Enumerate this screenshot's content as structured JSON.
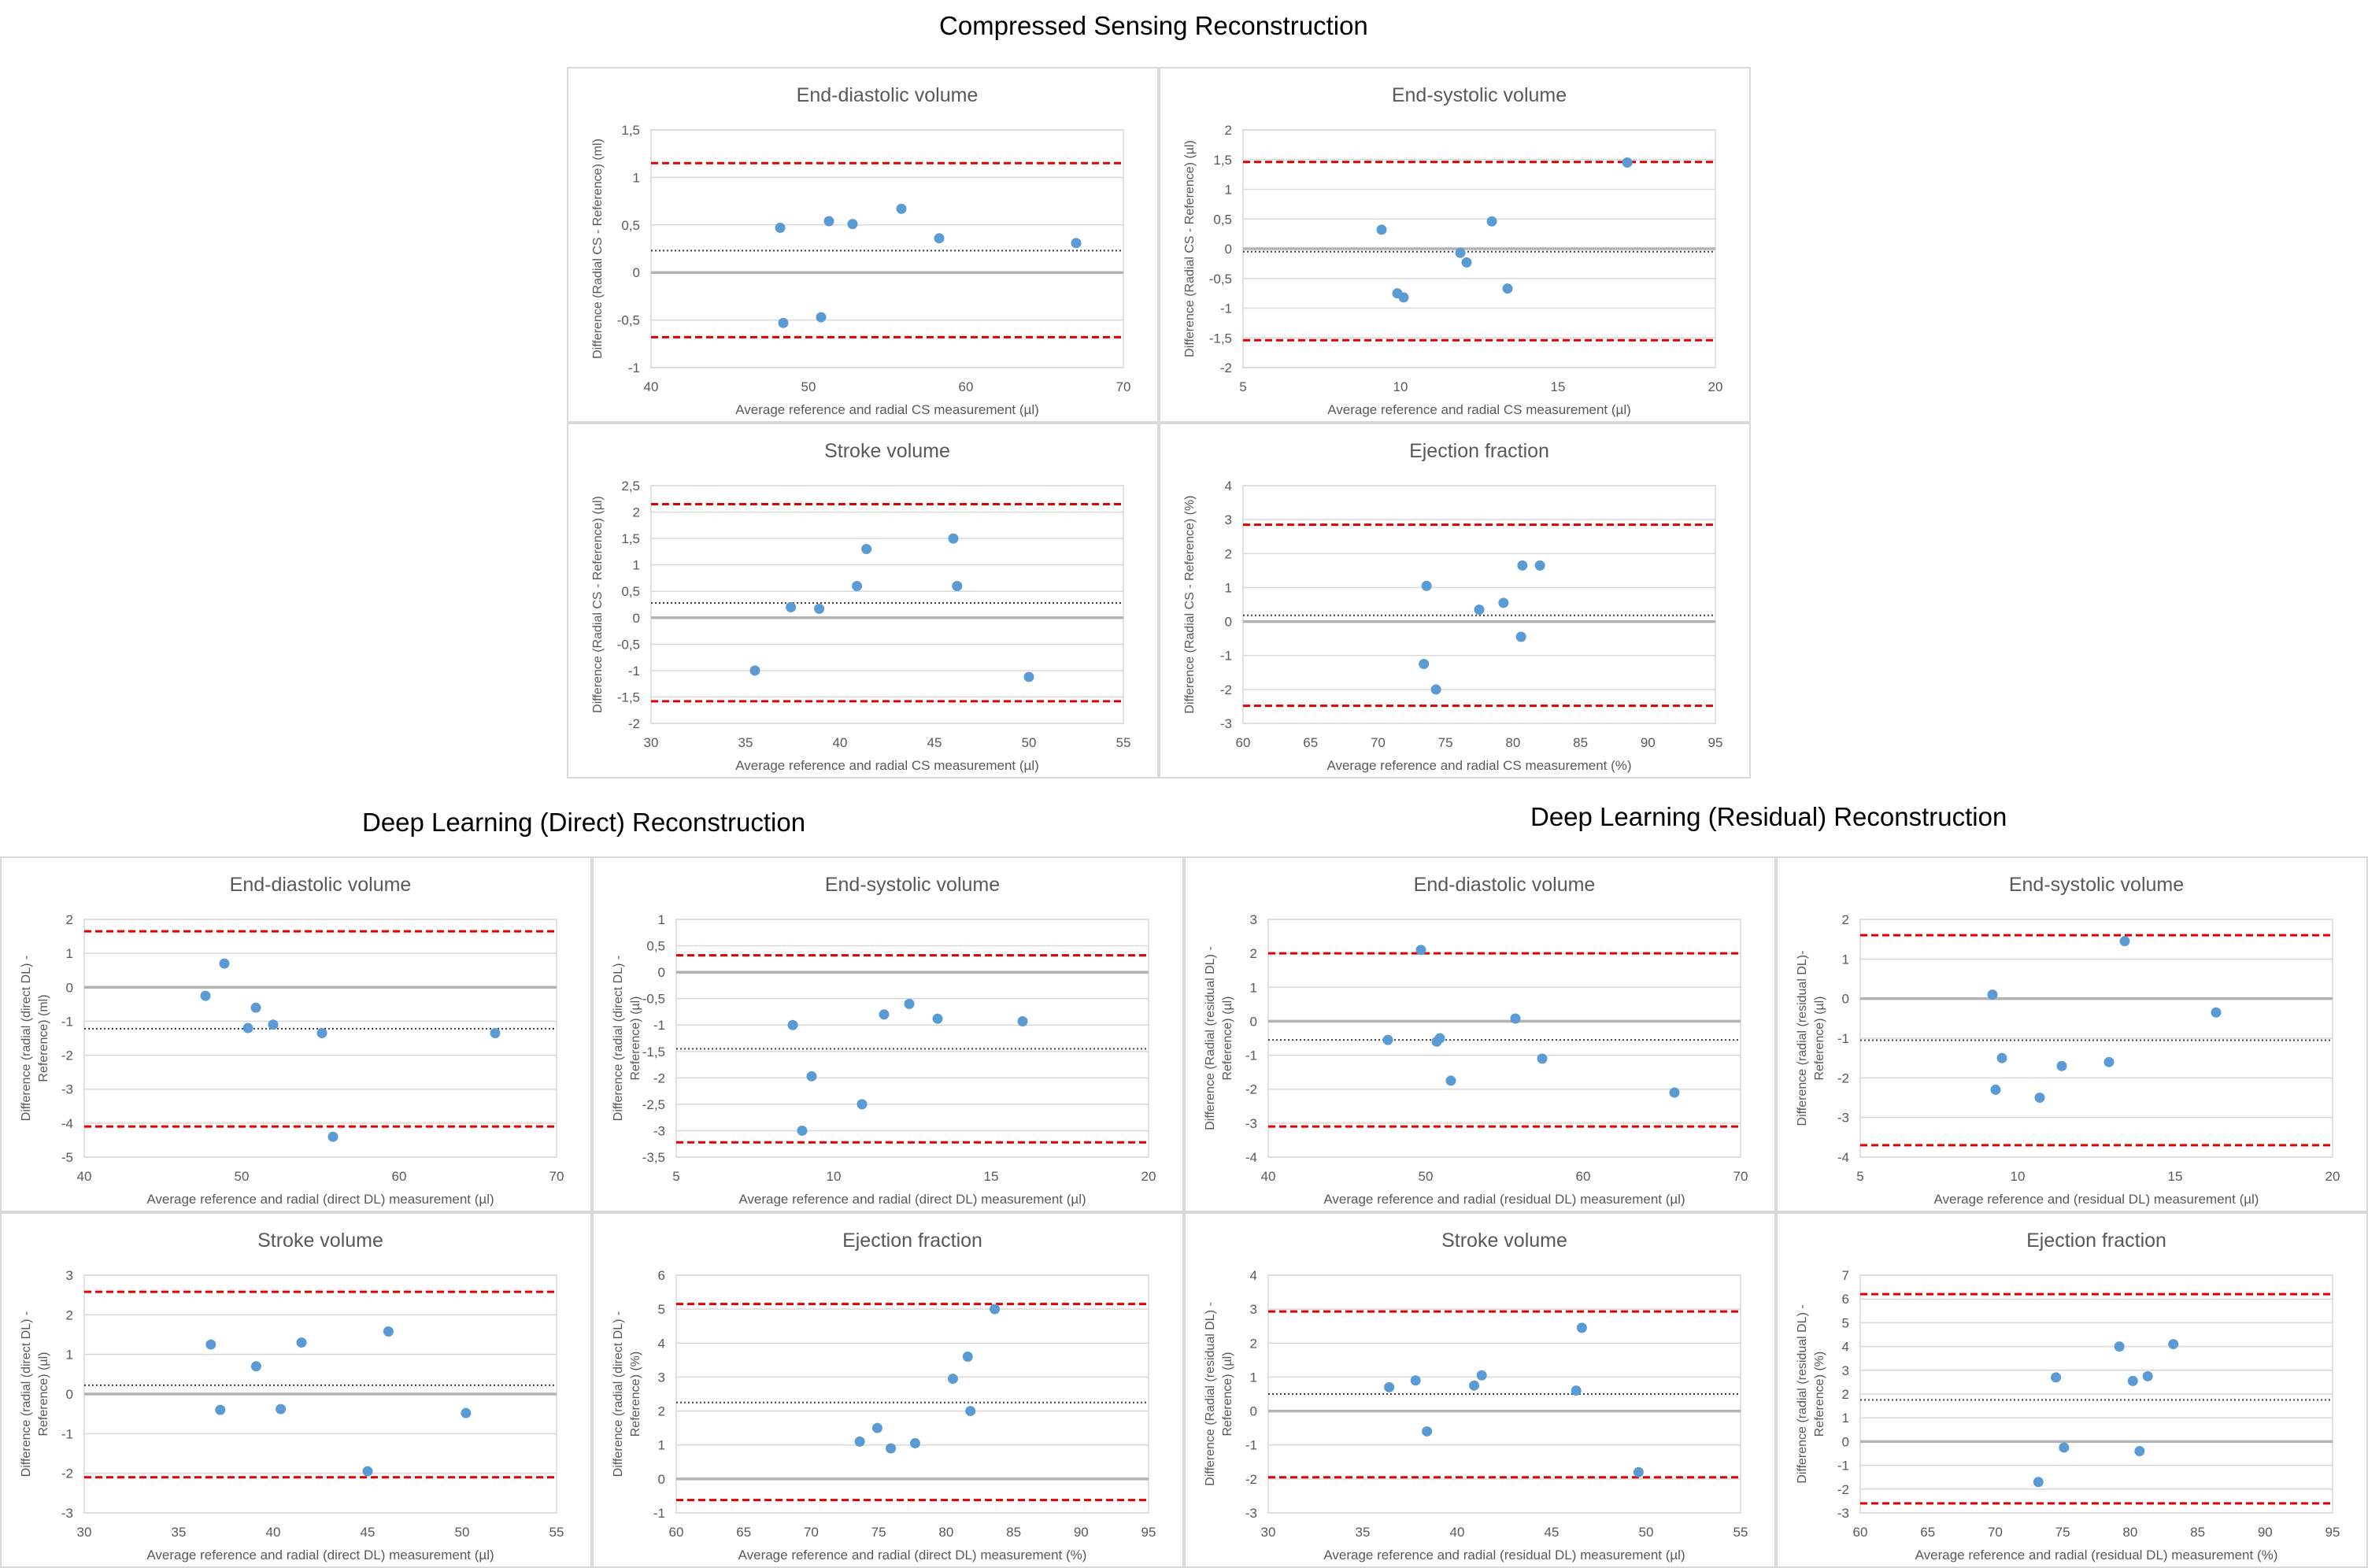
{
  "sections": {
    "cs": "Compressed Sensing Reconstruction",
    "dl_direct": "Deep Learning (Direct) Reconstruction",
    "dl_residual": "Deep Learning (Residual) Reconstruction"
  },
  "colors": {
    "points": "#5b9bd5",
    "limits": "#e00000",
    "mean": "#404040",
    "zero": "#b3b3b3",
    "grid": "#d9d9d9",
    "border": "#d9d9d9"
  },
  "chart_data": [
    {
      "id": "cs-edv",
      "type": "scatter",
      "title": "End-diastolic volume",
      "xlabel": "Average reference and radial CS measurement (µl)",
      "ylabel": [
        "Difference (Radial CS - Reference) (ml)"
      ],
      "xlim": [
        40,
        70
      ],
      "xticks": [
        "40",
        "50",
        "60",
        "70"
      ],
      "xtick_values": [
        40,
        50,
        60,
        70
      ],
      "ylim": [
        -1,
        1.5
      ],
      "yticks": [
        "-1",
        "-0,5",
        "0",
        "0,5",
        "1",
        "1,5"
      ],
      "ytick_values": [
        -1,
        -0.5,
        0,
        0.5,
        1,
        1.5
      ],
      "mean": 0.23,
      "upper": 1.15,
      "lower": -0.68,
      "points": [
        [
          48.2,
          0.47
        ],
        [
          48.4,
          -0.53
        ],
        [
          50.8,
          -0.47
        ],
        [
          51.3,
          0.54
        ],
        [
          52.8,
          0.51
        ],
        [
          55.9,
          0.67
        ],
        [
          58.3,
          0.36
        ],
        [
          67.0,
          0.31
        ]
      ]
    },
    {
      "id": "cs-esv",
      "type": "scatter",
      "title": "End-systolic volume",
      "xlabel": "Average reference and radial CS measurement (µl)",
      "ylabel": [
        "Difference (Radial CS - Reference) (µl)"
      ],
      "xlim": [
        5,
        20
      ],
      "xticks": [
        "5",
        "10",
        "15",
        "20"
      ],
      "xtick_values": [
        5,
        10,
        15,
        20
      ],
      "ylim": [
        -2,
        2
      ],
      "yticks": [
        "-2",
        "-1,5",
        "-1",
        "-0,5",
        "0",
        "0,5",
        "1",
        "1,5",
        "2"
      ],
      "ytick_values": [
        -2,
        -1.5,
        -1,
        -0.5,
        0,
        0.5,
        1,
        1.5,
        2
      ],
      "mean": -0.05,
      "upper": 1.46,
      "lower": -1.54,
      "points": [
        [
          9.4,
          0.32
        ],
        [
          9.9,
          -0.75
        ],
        [
          10.1,
          -0.82
        ],
        [
          11.9,
          -0.07
        ],
        [
          12.1,
          -0.23
        ],
        [
          12.9,
          0.46
        ],
        [
          13.4,
          -0.67
        ],
        [
          17.2,
          1.45
        ]
      ]
    },
    {
      "id": "cs-sv",
      "type": "scatter",
      "title": "Stroke volume",
      "xlabel": "Average reference and radial CS measurement (µl)",
      "ylabel": [
        "Difference (Radial CS - Reference) (µl)"
      ],
      "xlim": [
        30,
        55
      ],
      "xticks": [
        "30",
        "35",
        "40",
        "45",
        "50",
        "55"
      ],
      "xtick_values": [
        30,
        35,
        40,
        45,
        50,
        55
      ],
      "ylim": [
        -2,
        2.5
      ],
      "yticks": [
        "-2",
        "-1,5",
        "-1",
        "-0,5",
        "0",
        "0,5",
        "1",
        "1,5",
        "2",
        "2,5"
      ],
      "ytick_values": [
        -2,
        -1.5,
        -1,
        -0.5,
        0,
        0.5,
        1,
        1.5,
        2,
        2.5
      ],
      "mean": 0.28,
      "upper": 2.15,
      "lower": -1.58,
      "points": [
        [
          35.5,
          -1.0
        ],
        [
          37.4,
          0.2
        ],
        [
          38.9,
          0.17
        ],
        [
          40.9,
          0.6
        ],
        [
          41.4,
          1.3
        ],
        [
          46.0,
          1.5
        ],
        [
          46.2,
          0.6
        ],
        [
          50.0,
          -1.12
        ]
      ]
    },
    {
      "id": "cs-ef",
      "type": "scatter",
      "title": "Ejection fraction",
      "xlabel": "Average reference and radial CS measurement (%)",
      "ylabel": [
        "Difference (Radial CS - Reference) (%)"
      ],
      "xlim": [
        60,
        95
      ],
      "xticks": [
        "60",
        "65",
        "70",
        "75",
        "80",
        "85",
        "90",
        "95"
      ],
      "xtick_values": [
        60,
        65,
        70,
        75,
        80,
        85,
        90,
        95
      ],
      "ylim": [
        -3,
        4
      ],
      "yticks": [
        "-3",
        "-2",
        "-1",
        "0",
        "1",
        "2",
        "3",
        "4"
      ],
      "ytick_values": [
        -3,
        -2,
        -1,
        0,
        1,
        2,
        3,
        4
      ],
      "mean": 0.18,
      "upper": 2.85,
      "lower": -2.48,
      "points": [
        [
          73.4,
          -1.25
        ],
        [
          73.6,
          1.05
        ],
        [
          74.3,
          -2.0
        ],
        [
          77.5,
          0.35
        ],
        [
          79.3,
          0.55
        ],
        [
          80.6,
          -0.45
        ],
        [
          80.7,
          1.65
        ],
        [
          82.0,
          1.65
        ]
      ]
    },
    {
      "id": "dld-edv",
      "type": "scatter",
      "title": "End-diastolic volume",
      "xlabel": "Average reference and radial (direct DL) measurement (µl)",
      "ylabel": [
        "Difference (radial (direct DL) -",
        "Reference) (ml)"
      ],
      "xlim": [
        40,
        70
      ],
      "xticks": [
        "40",
        "50",
        "60",
        "70"
      ],
      "xtick_values": [
        40,
        50,
        60,
        70
      ],
      "ylim": [
        -5,
        2
      ],
      "yticks": [
        "-5",
        "-4",
        "-3",
        "-2",
        "-1",
        "0",
        "1",
        "2"
      ],
      "ytick_values": [
        -5,
        -4,
        -3,
        -2,
        -1,
        0,
        1,
        2
      ],
      "mean": -1.22,
      "upper": 1.65,
      "lower": -4.1,
      "points": [
        [
          47.7,
          -0.25
        ],
        [
          48.9,
          0.7
        ],
        [
          50.4,
          -1.2
        ],
        [
          50.9,
          -0.6
        ],
        [
          52.0,
          -1.1
        ],
        [
          55.1,
          -1.35
        ],
        [
          55.8,
          -4.4
        ],
        [
          66.1,
          -1.35
        ]
      ]
    },
    {
      "id": "dld-esv",
      "type": "scatter",
      "title": "End-systolic volume",
      "xlabel": "Average reference and radial (direct DL) measurement (µl)",
      "ylabel": [
        "Difference (radial (direct DL) -",
        "Reference) (µl)"
      ],
      "xlim": [
        5,
        20
      ],
      "xticks": [
        "5",
        "10",
        "15",
        "20"
      ],
      "xtick_values": [
        5,
        10,
        15,
        20
      ],
      "ylim": [
        -3.5,
        1
      ],
      "yticks": [
        "-3,5",
        "-3",
        "-2,5",
        "-2",
        "-1,5",
        "-1",
        "-0,5",
        "0",
        "0,5",
        "1"
      ],
      "ytick_values": [
        -3.5,
        -3,
        -2.5,
        -2,
        -1.5,
        -1,
        -0.5,
        0,
        0.5,
        1
      ],
      "mean": -1.45,
      "upper": 0.32,
      "lower": -3.22,
      "points": [
        [
          8.7,
          -1.0
        ],
        [
          9.0,
          -3.0
        ],
        [
          9.3,
          -1.97
        ],
        [
          10.9,
          -2.5
        ],
        [
          11.6,
          -0.8
        ],
        [
          12.4,
          -0.6
        ],
        [
          13.3,
          -0.88
        ],
        [
          16.0,
          -0.93
        ]
      ]
    },
    {
      "id": "dld-sv",
      "type": "scatter",
      "title": "Stroke volume",
      "xlabel": "Average reference and radial (direct DL) measurement (µl)",
      "ylabel": [
        "Difference (radial (direct DL) -",
        "Reference) (µl)"
      ],
      "xlim": [
        30,
        55
      ],
      "xticks": [
        "30",
        "35",
        "40",
        "45",
        "50",
        "55"
      ],
      "xtick_values": [
        30,
        35,
        40,
        45,
        50,
        55
      ],
      "ylim": [
        -3,
        3
      ],
      "yticks": [
        "-3",
        "-2",
        "-1",
        "0",
        "1",
        "2",
        "3"
      ],
      "ytick_values": [
        -3,
        -2,
        -1,
        0,
        1,
        2,
        3
      ],
      "mean": 0.22,
      "upper": 2.58,
      "lower": -2.1,
      "points": [
        [
          36.7,
          1.25
        ],
        [
          37.2,
          -0.4
        ],
        [
          39.1,
          0.7
        ],
        [
          40.4,
          -0.38
        ],
        [
          41.5,
          1.3
        ],
        [
          45.0,
          -1.95
        ],
        [
          46.1,
          1.58
        ],
        [
          50.2,
          -0.48
        ]
      ]
    },
    {
      "id": "dld-ef",
      "type": "scatter",
      "title": "Ejection fraction",
      "xlabel": "Average reference and radial (direct DL) measurement (%)",
      "ylabel": [
        "Difference (radial (direct DL) -",
        "Reference) (%)"
      ],
      "xlim": [
        60,
        95
      ],
      "xticks": [
        "60",
        "65",
        "70",
        "75",
        "80",
        "85",
        "90",
        "95"
      ],
      "xtick_values": [
        60,
        65,
        70,
        75,
        80,
        85,
        90,
        95
      ],
      "ylim": [
        -1,
        6
      ],
      "yticks": [
        "-1",
        "0",
        "1",
        "2",
        "3",
        "4",
        "5",
        "6"
      ],
      "ytick_values": [
        -1,
        0,
        1,
        2,
        3,
        4,
        5,
        6
      ],
      "mean": 2.25,
      "upper": 5.15,
      "lower": -0.62,
      "points": [
        [
          73.6,
          1.1
        ],
        [
          74.9,
          1.5
        ],
        [
          75.9,
          0.9
        ],
        [
          77.7,
          1.05
        ],
        [
          80.5,
          2.95
        ],
        [
          81.6,
          3.6
        ],
        [
          81.8,
          2.0
        ],
        [
          83.6,
          5.0
        ]
      ]
    },
    {
      "id": "dlr-edv",
      "type": "scatter",
      "title": "End-diastolic volume",
      "xlabel": "Average reference and radial (residual DL) measurement (µl)",
      "ylabel": [
        "Difference (Radial (residual DL) -",
        "Reference) (µl)"
      ],
      "xlim": [
        40,
        70
      ],
      "xticks": [
        "40",
        "50",
        "60",
        "70"
      ],
      "xtick_values": [
        40,
        50,
        60,
        70
      ],
      "ylim": [
        -4,
        3
      ],
      "yticks": [
        "-4",
        "-3",
        "-2",
        "-1",
        "0",
        "1",
        "2",
        "3"
      ],
      "ytick_values": [
        -4,
        -3,
        -2,
        -1,
        0,
        1,
        2,
        3
      ],
      "mean": -0.55,
      "upper": 2.0,
      "lower": -3.1,
      "points": [
        [
          47.6,
          -0.55
        ],
        [
          49.7,
          2.1
        ],
        [
          50.7,
          -0.6
        ],
        [
          50.9,
          -0.5
        ],
        [
          51.6,
          -1.75
        ],
        [
          55.7,
          0.08
        ],
        [
          57.4,
          -1.1
        ],
        [
          65.8,
          -2.1
        ]
      ]
    },
    {
      "id": "dlr-esv",
      "type": "scatter",
      "title": "End-systolic volume",
      "xlabel": "Average reference and (residual DL) measurement (µl)",
      "ylabel": [
        "Difference (radial (residual DL)-",
        "Reference) (µl)"
      ],
      "xlim": [
        5,
        20
      ],
      "xticks": [
        "5",
        "10",
        "15",
        "20"
      ],
      "xtick_values": [
        5,
        10,
        15,
        20
      ],
      "ylim": [
        -4,
        2
      ],
      "yticks": [
        "-4",
        "-3",
        "-2",
        "-1",
        "0",
        "1",
        "2"
      ],
      "ytick_values": [
        -4,
        -3,
        -2,
        -1,
        0,
        1,
        2
      ],
      "mean": -1.05,
      "upper": 1.6,
      "lower": -3.7,
      "points": [
        [
          9.2,
          0.1
        ],
        [
          9.3,
          -2.3
        ],
        [
          9.5,
          -1.5
        ],
        [
          10.7,
          -2.5
        ],
        [
          11.4,
          -1.7
        ],
        [
          12.9,
          -1.6
        ],
        [
          13.4,
          1.45
        ],
        [
          16.3,
          -0.35
        ]
      ]
    },
    {
      "id": "dlr-sv",
      "type": "scatter",
      "title": "Stroke volume",
      "xlabel": "Average reference and radial (residual DL) measurement (µl)",
      "ylabel": [
        "Difference (Radial (residual DL) -",
        "Reference) (µl)"
      ],
      "xlim": [
        30,
        55
      ],
      "xticks": [
        "30",
        "35",
        "40",
        "45",
        "50",
        "55"
      ],
      "xtick_values": [
        30,
        35,
        40,
        45,
        50,
        55
      ],
      "ylim": [
        -3,
        4
      ],
      "yticks": [
        "-3",
        "-2",
        "-1",
        "0",
        "1",
        "2",
        "3",
        "4"
      ],
      "ytick_values": [
        -3,
        -2,
        -1,
        0,
        1,
        2,
        3,
        4
      ],
      "mean": 0.5,
      "upper": 2.93,
      "lower": -1.95,
      "points": [
        [
          36.4,
          0.7
        ],
        [
          37.8,
          0.9
        ],
        [
          38.4,
          -0.6
        ],
        [
          40.9,
          0.75
        ],
        [
          41.3,
          1.05
        ],
        [
          46.3,
          0.6
        ],
        [
          46.6,
          2.45
        ],
        [
          49.6,
          -1.8
        ]
      ]
    },
    {
      "id": "dlr-ef",
      "type": "scatter",
      "title": "Ejection fraction",
      "xlabel": "Average reference and radial (residual DL) measurement (%)",
      "ylabel": [
        "Difference (radial (residual DL) -",
        "Reference) (%)"
      ],
      "xlim": [
        60,
        95
      ],
      "xticks": [
        "60",
        "65",
        "70",
        "75",
        "80",
        "85",
        "90",
        "95"
      ],
      "xtick_values": [
        60,
        65,
        70,
        75,
        80,
        85,
        90,
        95
      ],
      "ylim": [
        -3,
        7
      ],
      "yticks": [
        "-3",
        "-2",
        "-1",
        "0",
        "1",
        "2",
        "3",
        "4",
        "5",
        "6",
        "7"
      ],
      "ytick_values": [
        -3,
        -2,
        -1,
        0,
        1,
        2,
        3,
        4,
        5,
        6,
        7
      ],
      "mean": 1.75,
      "upper": 6.2,
      "lower": -2.6,
      "points": [
        [
          73.2,
          -1.7
        ],
        [
          74.5,
          2.7
        ],
        [
          75.1,
          -0.25
        ],
        [
          79.2,
          4.0
        ],
        [
          80.2,
          2.55
        ],
        [
          80.7,
          -0.4
        ],
        [
          81.3,
          2.75
        ],
        [
          83.2,
          4.1
        ]
      ]
    }
  ]
}
